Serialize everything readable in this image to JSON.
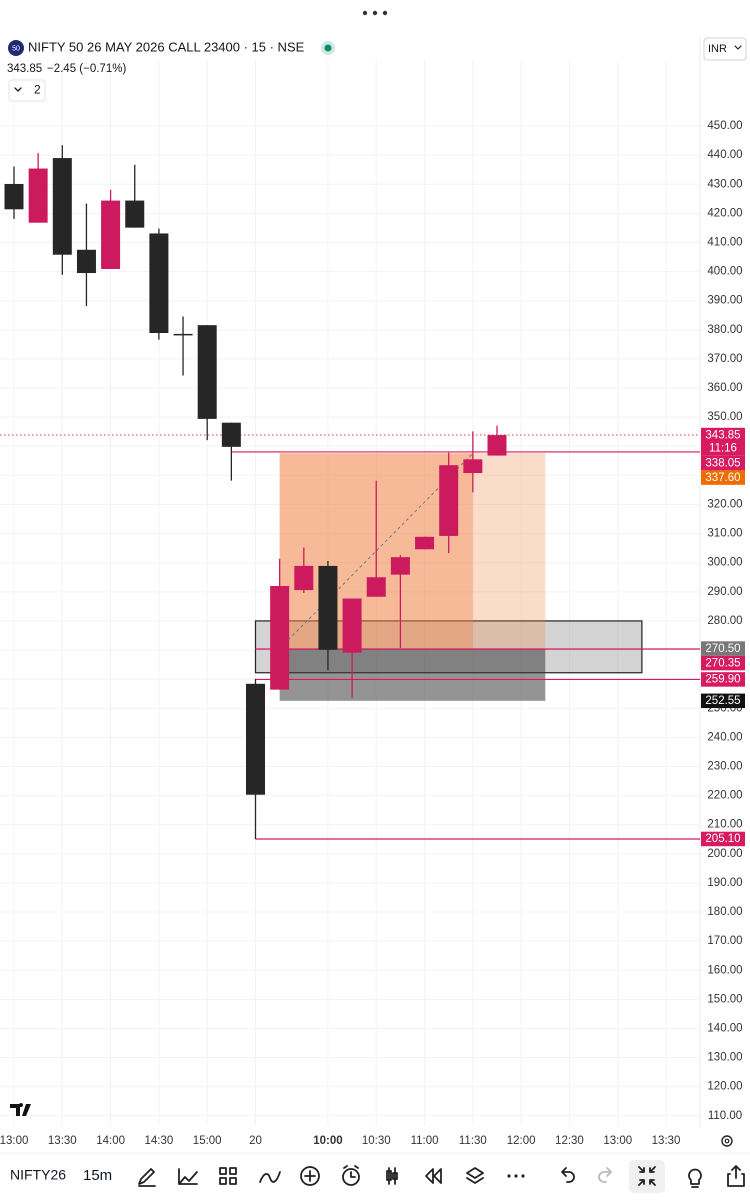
{
  "header": {
    "symbol_badge": "50",
    "title": "NIFTY 50 26 MAY 2026 CALL 23400 · 15 · NSE",
    "price": "343.85",
    "change": "−2.45 (−0.71%)",
    "indicator_count": 2,
    "currency": "INR"
  },
  "chart_data": {
    "type": "candlestick",
    "categories": [
      "13:00",
      null,
      "13:30",
      null,
      "14:00",
      null,
      "14:30",
      null,
      "15:00",
      null,
      "20",
      null,
      null,
      "10:00",
      null,
      "10:30",
      null,
      "11:00",
      null,
      "11:30",
      null,
      "12:00",
      null,
      "12:30",
      null,
      "13:00",
      null,
      "13:30"
    ],
    "open": [
      430.1,
      416.8,
      439.0,
      407.5,
      400.9,
      424.4,
      413.1,
      378.6,
      381.6,
      348.1,
      258.4,
      256.4,
      290.6,
      298.9,
      269.1,
      288.3,
      295.9,
      304.6,
      309.2,
      330.8,
      336.8,
      null,
      null,
      null,
      null,
      null,
      null,
      null
    ],
    "high": [
      436.1,
      440.7,
      443.4,
      423.4,
      428.1,
      436.7,
      414.8,
      384.6,
      381.6,
      348.1,
      260.1,
      301.3,
      305.2,
      300.6,
      287.7,
      328.2,
      302.6,
      308.9,
      337.8,
      345.1,
      347.1,
      null,
      null,
      null,
      null,
      null,
      null,
      null
    ],
    "low": [
      418.1,
      416.8,
      398.9,
      388.2,
      400.9,
      415.1,
      376.6,
      364.3,
      342.1,
      328.2,
      205.1,
      256.4,
      289.6,
      263.1,
      253.5,
      288.3,
      270.7,
      304.6,
      303.3,
      324.2,
      336.8,
      null,
      null,
      null,
      null,
      null,
      null,
      null
    ],
    "close": [
      421.4,
      435.4,
      405.8,
      399.5,
      424.4,
      415.1,
      378.9,
      378.6,
      349.4,
      339.8,
      220.3,
      292.0,
      298.9,
      270.1,
      287.7,
      295.0,
      301.9,
      308.9,
      333.5,
      335.5,
      343.85,
      null,
      null,
      null,
      null,
      null,
      null,
      null
    ],
    "up_color": "#cc1a5e",
    "down_color": "#262626",
    "ylim": [
      106.5,
      472
    ],
    "yticks": [
      {
        "value": 110,
        "label": "110.00"
      },
      {
        "value": 120,
        "label": "120.00"
      },
      {
        "value": 130,
        "label": "130.00"
      },
      {
        "value": 140,
        "label": "140.00"
      },
      {
        "value": 150,
        "label": "150.00"
      },
      {
        "value": 160,
        "label": "160.00"
      },
      {
        "value": 170,
        "label": "170.00"
      },
      {
        "value": 180,
        "label": "180.00"
      },
      {
        "value": 190,
        "label": "190.00"
      },
      {
        "value": 200,
        "label": "200.00"
      },
      {
        "value": 210,
        "label": "210.00"
      },
      {
        "value": 220,
        "label": "220.00"
      },
      {
        "value": 230,
        "label": "230.00"
      },
      {
        "value": 240,
        "label": "240.00"
      },
      {
        "value": 250,
        "label": "250.00"
      },
      {
        "value": 260,
        "label": "260.00"
      },
      {
        "value": 270,
        "label": "270.00"
      },
      {
        "value": 280,
        "label": "280.00"
      },
      {
        "value": 290,
        "label": "290.00"
      },
      {
        "value": 300,
        "label": "300.00"
      },
      {
        "value": 310,
        "label": "310.00"
      },
      {
        "value": 320,
        "label": "320.00"
      },
      {
        "value": 330,
        "label": "330.00"
      },
      {
        "value": 340,
        "label": "340.00"
      },
      {
        "value": 350,
        "label": "350.00"
      },
      {
        "value": 360,
        "label": "360.00"
      },
      {
        "value": 370,
        "label": "370.00"
      },
      {
        "value": 380,
        "label": "380.00"
      },
      {
        "value": 390,
        "label": "390.00"
      },
      {
        "value": 400,
        "label": "400.00"
      },
      {
        "value": 410,
        "label": "410.00"
      },
      {
        "value": 420,
        "label": "420.00"
      },
      {
        "value": 430,
        "label": "430.00"
      },
      {
        "value": 440,
        "label": "440.00"
      },
      {
        "value": 450,
        "label": "450.00"
      }
    ],
    "grid": true,
    "price_labels": [
      {
        "value": 343.85,
        "label": "343.85",
        "color": "#d81b60",
        "sub": "11:16"
      },
      {
        "value": 338.05,
        "label": "338.05",
        "color": "#d81b60"
      },
      {
        "value": 337.6,
        "label": "337.60",
        "color": "#ef6c00"
      },
      {
        "value": 270.5,
        "label": "270.50",
        "color": "#787878"
      },
      {
        "value": 270.35,
        "label": "270.35",
        "color": "#d81b60"
      },
      {
        "value": 259.9,
        "label": "259.90",
        "color": "#d81b60"
      },
      {
        "value": 252.55,
        "label": "252.55",
        "color": "#111111"
      },
      {
        "value": 205.1,
        "label": "205.10",
        "color": "#d81b60"
      }
    ],
    "levels": [
      338.05,
      270.35,
      259.9,
      205.1
    ],
    "position": {
      "entry": 270.5,
      "target": 337.6,
      "stop": 252.55
    },
    "box": {
      "top": 280,
      "bottom": 262.2
    }
  },
  "toolbar": {
    "symbol": "NIFTY26",
    "interval": "15m"
  }
}
